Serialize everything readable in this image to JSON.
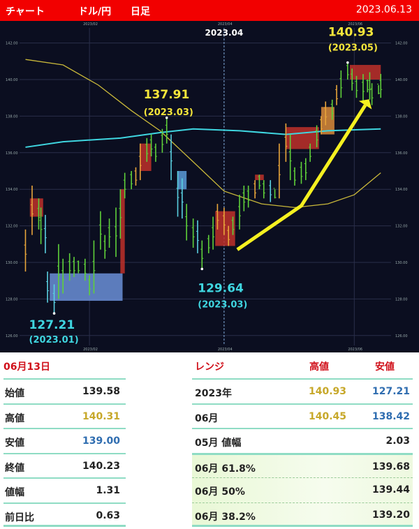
{
  "header": {
    "title": "チャート",
    "pair": "ドル/円",
    "timeframe": "日足",
    "date": "2023.06.13",
    "bg": "#f20000"
  },
  "chart_data": {
    "type": "candlestick",
    "year": 2023,
    "y_ticks": [
      "142.00",
      "140.00",
      "138.00",
      "136.00",
      "134.00",
      "132.00",
      "130.00",
      "128.00",
      "126.00"
    ],
    "ylim": [
      125.4,
      143.0
    ],
    "x_ticks": [
      {
        "date": "02/01",
        "label": "2023/02"
      },
      {
        "date": "04/03",
        "label": "2023/04"
      },
      {
        "date": "06/01",
        "label": "2023/06"
      }
    ],
    "highlight_month_label": "2023.04",
    "grid": true,
    "bar_colors": {
      "g": "#5fd03a",
      "o": "#e8a53a",
      "c": "#5ad0e0"
    },
    "bars": [
      [
        "01/03",
        131.8,
        129.5,
        "o"
      ],
      [
        "01/06",
        134.2,
        131.5,
        "o"
      ],
      [
        "01/09",
        133.5,
        131.8,
        "g"
      ],
      [
        "01/10",
        133,
        131,
        "g"
      ],
      [
        "01/12",
        132.6,
        130.5,
        "c"
      ],
      [
        "01/13",
        129.5,
        127.8,
        "c"
      ],
      [
        "01/16",
        128.8,
        127.21,
        "c"
      ],
      [
        "01/18",
        131,
        128,
        "g"
      ],
      [
        "01/20",
        130.2,
        128.3,
        "g"
      ],
      [
        "01/23",
        130.5,
        129,
        "g"
      ],
      [
        "01/25",
        130.3,
        129.2,
        "g"
      ],
      [
        "01/27",
        130.1,
        129.4,
        "g"
      ],
      [
        "01/30",
        130.2,
        129,
        "g"
      ],
      [
        "02/01",
        129.3,
        128.2,
        "g"
      ],
      [
        "02/03",
        131.2,
        128.3,
        "g"
      ],
      [
        "02/06",
        132.8,
        130.7,
        "g"
      ],
      [
        "02/08",
        131.5,
        130.2,
        "g"
      ],
      [
        "02/10",
        132.4,
        130.8,
        "g"
      ],
      [
        "02/13",
        133,
        130.3,
        "g"
      ],
      [
        "02/15",
        134,
        131.3,
        "g"
      ],
      [
        "02/17",
        134.9,
        133.5,
        "g"
      ],
      [
        "02/20",
        135,
        134,
        "g"
      ],
      [
        "02/22",
        135.2,
        134.2,
        "o"
      ],
      [
        "02/24",
        136.5,
        134.5,
        "o"
      ],
      [
        "02/27",
        136.8,
        135.5,
        "g"
      ],
      [
        "03/01",
        137,
        135.8,
        "g"
      ],
      [
        "03/03",
        136.5,
        135.5,
        "g"
      ],
      [
        "03/06",
        137.3,
        136,
        "g"
      ],
      [
        "03/08",
        137.91,
        136.5,
        "g"
      ],
      [
        "03/10",
        137,
        134.5,
        "c"
      ],
      [
        "03/13",
        135,
        132.5,
        "c"
      ],
      [
        "03/15",
        134.6,
        132.4,
        "c"
      ],
      [
        "03/17",
        133.2,
        131.2,
        "g"
      ],
      [
        "03/20",
        132.4,
        130.8,
        "g"
      ],
      [
        "03/22",
        132.3,
        130.5,
        "c"
      ],
      [
        "03/24",
        131.2,
        129.64,
        "g"
      ],
      [
        "03/27",
        131.5,
        130.5,
        "g"
      ],
      [
        "03/29",
        132.5,
        130.7,
        "g"
      ],
      [
        "03/31",
        133.2,
        131.8,
        "o"
      ],
      [
        "04/03",
        133,
        131.5,
        "o"
      ],
      [
        "04/05",
        132,
        130.9,
        "o"
      ],
      [
        "04/07",
        132.5,
        131.5,
        "g"
      ],
      [
        "04/10",
        133.7,
        131.8,
        "g"
      ],
      [
        "04/12",
        134.2,
        132.8,
        "g"
      ],
      [
        "04/14",
        134.2,
        133,
        "g"
      ],
      [
        "04/17",
        134.5,
        133.5,
        "o"
      ],
      [
        "04/19",
        134.8,
        134,
        "g"
      ],
      [
        "04/21",
        134.5,
        133.5,
        "g"
      ],
      [
        "04/24",
        134.5,
        133.3,
        "c"
      ],
      [
        "04/26",
        134,
        133.5,
        "g"
      ],
      [
        "04/28",
        136.5,
        133.5,
        "o"
      ],
      [
        "05/01",
        137.6,
        135.5,
        "o"
      ],
      [
        "05/03",
        137,
        134.5,
        "g"
      ],
      [
        "05/05",
        135.2,
        134.2,
        "g"
      ],
      [
        "05/08",
        135.5,
        134.3,
        "g"
      ],
      [
        "05/10",
        135.7,
        134.5,
        "g"
      ],
      [
        "05/12",
        136.5,
        135.5,
        "g"
      ],
      [
        "05/15",
        137.5,
        136.3,
        "g"
      ],
      [
        "05/17",
        138,
        137,
        "o"
      ],
      [
        "05/19",
        138.8,
        137.5,
        "o"
      ],
      [
        "05/22",
        138.9,
        137.8,
        "g"
      ],
      [
        "05/24",
        139.7,
        138.6,
        "o"
      ],
      [
        "05/26",
        140.5,
        139,
        "g"
      ],
      [
        "05/29",
        140.93,
        140,
        "g"
      ],
      [
        "05/31",
        140.6,
        139.4,
        "g"
      ],
      [
        "06/02",
        140.2,
        139,
        "g"
      ],
      [
        "06/05",
        140.3,
        138.8,
        "g"
      ],
      [
        "06/07",
        140,
        139.3,
        "g"
      ],
      [
        "06/08",
        140.4,
        138.9,
        "g"
      ],
      [
        "06/09",
        139.8,
        138.6,
        "g"
      ],
      [
        "06/12",
        139.7,
        139.2,
        "g"
      ],
      [
        "06/13",
        140.31,
        139,
        "g"
      ]
    ],
    "boxes": [
      {
        "from": "01/05",
        "to": "01/11",
        "top": 133.5,
        "bottom": 132.5,
        "color": "#c0302a"
      },
      {
        "from": "01/14",
        "to": "02/16",
        "top": 129.4,
        "bottom": 127.9,
        "color": "#6b8fd8"
      },
      {
        "from": "02/15",
        "to": "02/17",
        "top": 134,
        "bottom": 129.4,
        "color": "#c0302a"
      },
      {
        "from": "02/24",
        "to": "03/01",
        "top": 136.5,
        "bottom": 135,
        "color": "#c0302a"
      },
      {
        "from": "03/13",
        "to": "03/17",
        "top": 135,
        "bottom": 134,
        "color": "#5a9ad8"
      },
      {
        "from": "03/30",
        "to": "04/08",
        "top": 132.8,
        "bottom": 130.9,
        "color": "#c0302a"
      },
      {
        "from": "04/17",
        "to": "04/21",
        "top": 134.8,
        "bottom": 134.5,
        "color": "#c0302a"
      },
      {
        "from": "05/01",
        "to": "05/16",
        "top": 137.4,
        "bottom": 136.2,
        "color": "#c0302a"
      },
      {
        "from": "05/17",
        "to": "05/23",
        "top": 138.5,
        "bottom": 137,
        "color": "#d98a3a"
      },
      {
        "from": "05/30",
        "to": "06/13",
        "top": 140.8,
        "bottom": 140.0,
        "color": "#c0302a"
      }
    ],
    "ma_lines": [
      {
        "color": "#c9b83a",
        "points": [
          [
            "01/03",
            141.1
          ],
          [
            "01/20",
            140.8
          ],
          [
            "02/05",
            139.7
          ],
          [
            "02/20",
            138.3
          ],
          [
            "03/05",
            137.2
          ],
          [
            "03/20",
            135.5
          ],
          [
            "04/03",
            133.9
          ],
          [
            "04/20",
            133.2
          ],
          [
            "05/05",
            133
          ],
          [
            "05/20",
            133.2
          ],
          [
            "06/01",
            133.7
          ],
          [
            "06/13",
            134.9
          ]
        ]
      },
      {
        "color": "#3fd6e0",
        "points": [
          [
            "01/03",
            136.3
          ],
          [
            "01/20",
            136.6
          ],
          [
            "02/15",
            136.8
          ],
          [
            "03/05",
            137.1
          ],
          [
            "03/20",
            137.3
          ],
          [
            "04/10",
            137.2
          ],
          [
            "05/01",
            137.0
          ],
          [
            "05/20",
            137.2
          ],
          [
            "06/13",
            137.3
          ]
        ]
      }
    ],
    "arrow": {
      "color": "#f5f020",
      "points": [
        [
          "04/09",
          130.7
        ],
        [
          "05/08",
          133.1
        ],
        [
          "06/06",
          138.6
        ]
      ]
    },
    "annotations": [
      {
        "value": "127.21",
        "period": "(2023.01)",
        "color": "#3fd6e0",
        "at": [
          "01/16",
          127.21
        ]
      },
      {
        "value": "137.91",
        "period": "(2023.03)",
        "color": "#f5e63a",
        "at": [
          "03/08",
          137.91
        ]
      },
      {
        "value": "129.64",
        "period": "(2023.03)",
        "color": "#3fd6e0",
        "at": [
          "03/24",
          129.64
        ]
      },
      {
        "value": "140.93",
        "period": "(2023.05)",
        "color": "#f5e63a",
        "at": [
          "05/29",
          140.93
        ]
      }
    ]
  },
  "daily": {
    "title": "06月13日",
    "rows": [
      {
        "label": "始値",
        "value": "139.58",
        "tone": ""
      },
      {
        "label": "高値",
        "value": "140.31",
        "tone": "gold"
      },
      {
        "label": "安値",
        "value": "139.00",
        "tone": "blue"
      },
      {
        "label": "終値",
        "value": "140.23",
        "tone": ""
      },
      {
        "label": "値幅",
        "value": "1.31",
        "tone": ""
      },
      {
        "label": "前日比",
        "value": "0.63",
        "tone": ""
      }
    ]
  },
  "range": {
    "title": "レンジ",
    "high_label": "高値",
    "low_label": "安値",
    "rows": [
      {
        "label": "2023年",
        "high": "140.93",
        "low": "127.21"
      },
      {
        "label": "06月",
        "high": "140.45",
        "low": "138.42"
      },
      {
        "label": "05月 値幅",
        "high": "",
        "low": "2.03"
      },
      {
        "label": "06月  61.8%",
        "high": "",
        "low": "139.68"
      },
      {
        "label": "06月  50%",
        "high": "",
        "low": "139.44"
      },
      {
        "label": "06月  38.2%",
        "high": "",
        "low": "139.20"
      }
    ]
  }
}
